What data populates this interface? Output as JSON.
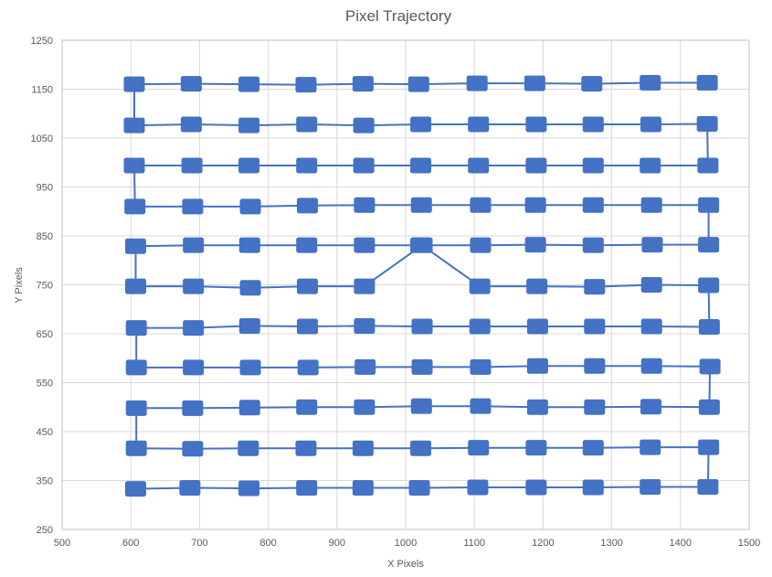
{
  "chart_data": {
    "type": "scatter",
    "title": "Pixel Trajectory",
    "xlabel": "X Pixels",
    "ylabel": "Y Pixels",
    "xlim": [
      500,
      1500
    ],
    "ylim": [
      250,
      1250
    ],
    "xticks": [
      500,
      600,
      700,
      800,
      900,
      1000,
      1100,
      1200,
      1300,
      1400,
      1500
    ],
    "yticks": [
      250,
      350,
      450,
      550,
      650,
      750,
      850,
      950,
      1050,
      1150,
      1250
    ],
    "grid": true,
    "legend": "none",
    "series": [
      {
        "color": "#4472c4",
        "markers": true,
        "x": [
          607,
          686,
          772,
          856,
          938,
          1020,
          1105,
          1190,
          1273,
          1356,
          1440,
          1441,
          1356,
          1273,
          1190,
          1106,
          1022,
          938,
          855,
          771,
          690,
          608,
          608,
          690,
          773,
          856,
          940,
          1023,
          1109,
          1192,
          1275,
          1357,
          1442,
          1443,
          1358,
          1275,
          1192,
          1109,
          1024,
          941,
          858,
          774,
          691,
          608,
          608,
          691,
          773,
          857,
          940,
          1024,
          1108,
          1192,
          1275,
          1358,
          1442,
          1441,
          1358,
          1275,
          1191,
          1108,
          1024,
          940,
          857,
          774,
          691,
          607,
          607,
          691,
          773,
          856,
          940,
          1022,
          1109,
          1189,
          1273,
          1359,
          1441,
          1441,
          1358,
          1273,
          1189,
          1109,
          1023,
          940,
          857,
          774,
          690,
          606,
          605,
          689,
          772,
          856,
          939,
          1022,
          1106,
          1190,
          1273,
          1356,
          1440,
          1439,
          1357,
          1273,
          1190,
          1106,
          1022,
          939,
          856,
          772,
          688,
          605,
          605,
          688,
          772,
          855,
          938,
          1019,
          1104,
          1188,
          1271,
          1356,
          1439
        ],
        "y": [
          333,
          335,
          334,
          335,
          335,
          335,
          336,
          336,
          336,
          337,
          337,
          418,
          418,
          417,
          417,
          417,
          416,
          416,
          416,
          416,
          415,
          416,
          498,
          498,
          499,
          500,
          500,
          502,
          502,
          500,
          500,
          501,
          500,
          583,
          584,
          584,
          584,
          582,
          582,
          582,
          581,
          581,
          581,
          581,
          662,
          662,
          666,
          665,
          666,
          665,
          665,
          665,
          665,
          665,
          664,
          749,
          750,
          746,
          747,
          747,
          831,
          747,
          747,
          744,
          747,
          747,
          829,
          831,
          831,
          831,
          831,
          831,
          831,
          832,
          831,
          832,
          832,
          913,
          913,
          913,
          913,
          913,
          913,
          913,
          912,
          910,
          910,
          910,
          994,
          994,
          994,
          994,
          994,
          994,
          994,
          994,
          994,
          994,
          994,
          1079,
          1078,
          1078,
          1078,
          1078,
          1078,
          1076,
          1078,
          1076,
          1078,
          1076,
          1160,
          1161,
          1160,
          1159,
          1161,
          1160,
          1162,
          1162,
          1161,
          1163,
          1163
        ]
      }
    ]
  }
}
